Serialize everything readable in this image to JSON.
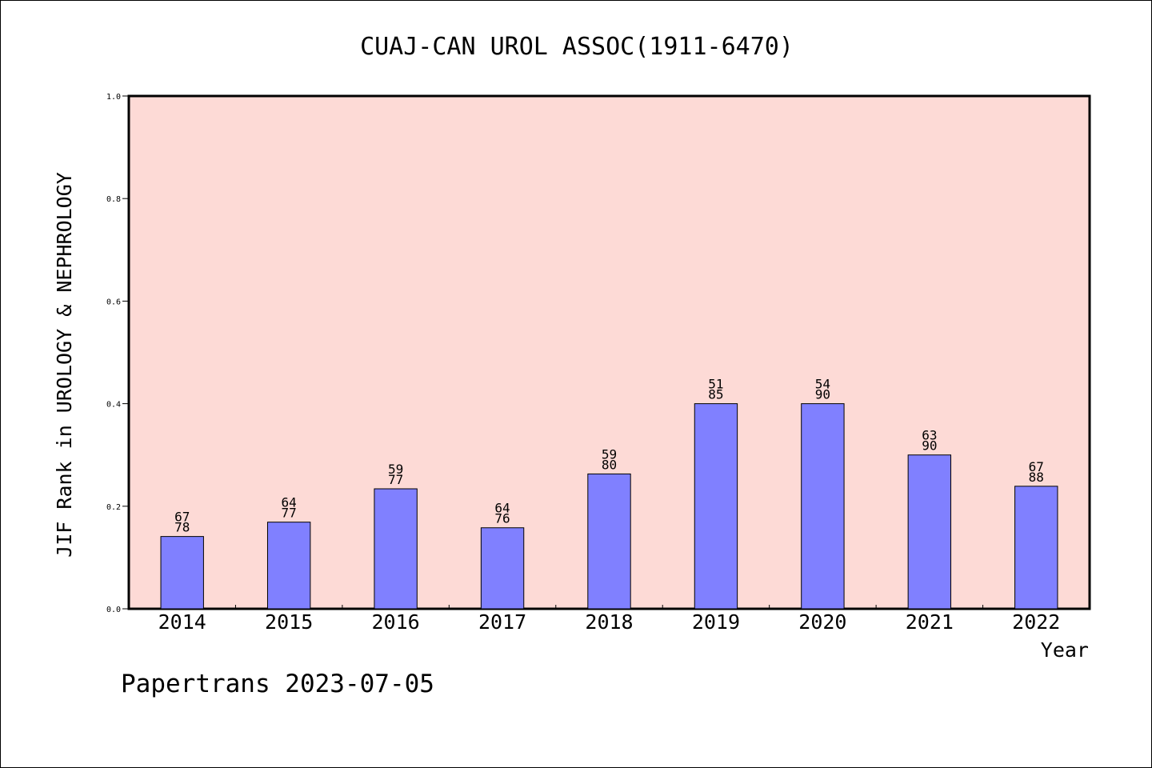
{
  "chart_data": {
    "type": "bar",
    "title": "CUAJ-CAN UROL ASSOC(1911-6470)",
    "xlabel": "Year",
    "ylabel": "JIF Rank in UROLOGY & NEPHROLOGY",
    "categories": [
      "2014",
      "2015",
      "2016",
      "2017",
      "2018",
      "2019",
      "2020",
      "2021",
      "2022"
    ],
    "values": [
      0.141,
      0.169,
      0.234,
      0.158,
      0.263,
      0.4,
      0.4,
      0.3,
      0.239
    ],
    "rank_labels": [
      "67",
      "64",
      "59",
      "64",
      "59",
      "51",
      "54",
      "63",
      "67"
    ],
    "total_labels": [
      "78",
      "77",
      "77",
      "76",
      "80",
      "85",
      "90",
      "90",
      "88"
    ],
    "ylim": [
      0,
      1.0
    ],
    "yticks": [
      "0.0",
      "0.2",
      "0.4",
      "0.6",
      "0.8",
      "1.0"
    ],
    "grid": false,
    "colors": {
      "plot_background": "#fddad6",
      "bar_fill": "#8080ff",
      "bar_stroke": "#000000"
    }
  },
  "footer": {
    "watermark": "Papertrans 2023-07-05"
  }
}
